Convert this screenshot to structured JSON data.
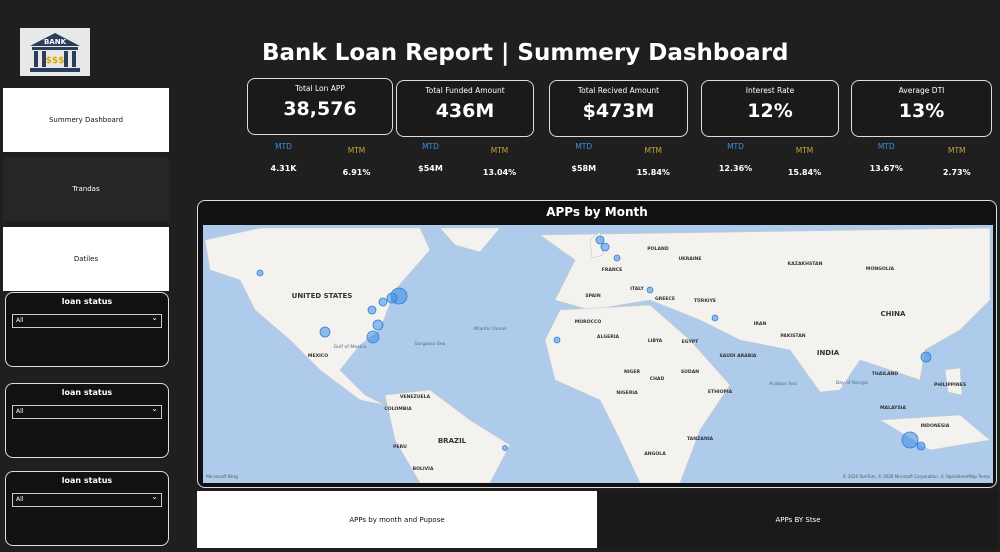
{
  "header": {
    "logo": "BANK",
    "logo_sub": "$$$",
    "title": "Bank Loan Report | Summery Dashboard"
  },
  "nav": [
    "Summery Dashboard",
    "Trandas",
    "Datiles"
  ],
  "slicers": [
    {
      "label": "loan status",
      "value": "All"
    },
    {
      "label": "loan status",
      "value": "All"
    },
    {
      "label": "loan status",
      "value": "All"
    }
  ],
  "kpis": [
    {
      "title": "Total Lon APP",
      "value": "38,576",
      "mtd_label": "MTD",
      "mtd": "4.31K",
      "mtm_label": "MTM",
      "mtm": "6.91%"
    },
    {
      "title": "Total Funded Amount",
      "value": "436M",
      "mtd_label": "MTD",
      "mtd": "$54M",
      "mtm_label": "MTM",
      "mtm": "13.04%"
    },
    {
      "title": "Total Recived Amount",
      "value": "$473M",
      "mtd_label": "MTD",
      "mtd": "$58M",
      "mtm_label": "MTM",
      "mtm": "15.84%"
    },
    {
      "title": "Interest Rate",
      "value": "12%",
      "mtd_label": "MTD",
      "mtd": "12.36%",
      "mtm_label": "MTM",
      "mtm": "15.84%"
    },
    {
      "title": "Average DTI",
      "value": "13%",
      "mtd_label": "MTD",
      "mtd": "13.67%",
      "mtm_label": "MTM",
      "mtm": "2.73%"
    }
  ],
  "map": {
    "title": "APPs by Month",
    "labels": [
      "UNITED STATES",
      "MEXICO",
      "Gulf of Mexico",
      "VENEZUELA",
      "COLOMBIA",
      "PERU",
      "BRAZIL",
      "BOLIVIA",
      "Atlantic Ocean",
      "Sargasso Sea",
      "POLAND",
      "UKRAINE",
      "FRANCE",
      "SPAIN",
      "ITALY",
      "GREECE",
      "TÜRKIYE",
      "MOROCCO",
      "ALGERIA",
      "LIBYA",
      "EGYPT",
      "NIGER",
      "CHAD",
      "NIGERIA",
      "SUDAN",
      "ETHIOPIA",
      "ANGOLA",
      "TANZANIA",
      "KAZAKHSTAN",
      "MONGOLIA",
      "CHINA",
      "IRAN",
      "PAKISTAN",
      "INDIA",
      "SAUDI ARABIA",
      "Arabian Sea",
      "Bay of Bengal",
      "THAILAND",
      "MALAYSIA",
      "INDONESIA",
      "PHILIPPINES"
    ],
    "attribution": "© 2026 TomTom, © 2026 Microsoft Corporation, © OpenStreetMap  Terms",
    "provider": "Microsoft Bing"
  },
  "tabs": [
    "APPs by month and Pupose",
    "APPs BY Stse"
  ]
}
